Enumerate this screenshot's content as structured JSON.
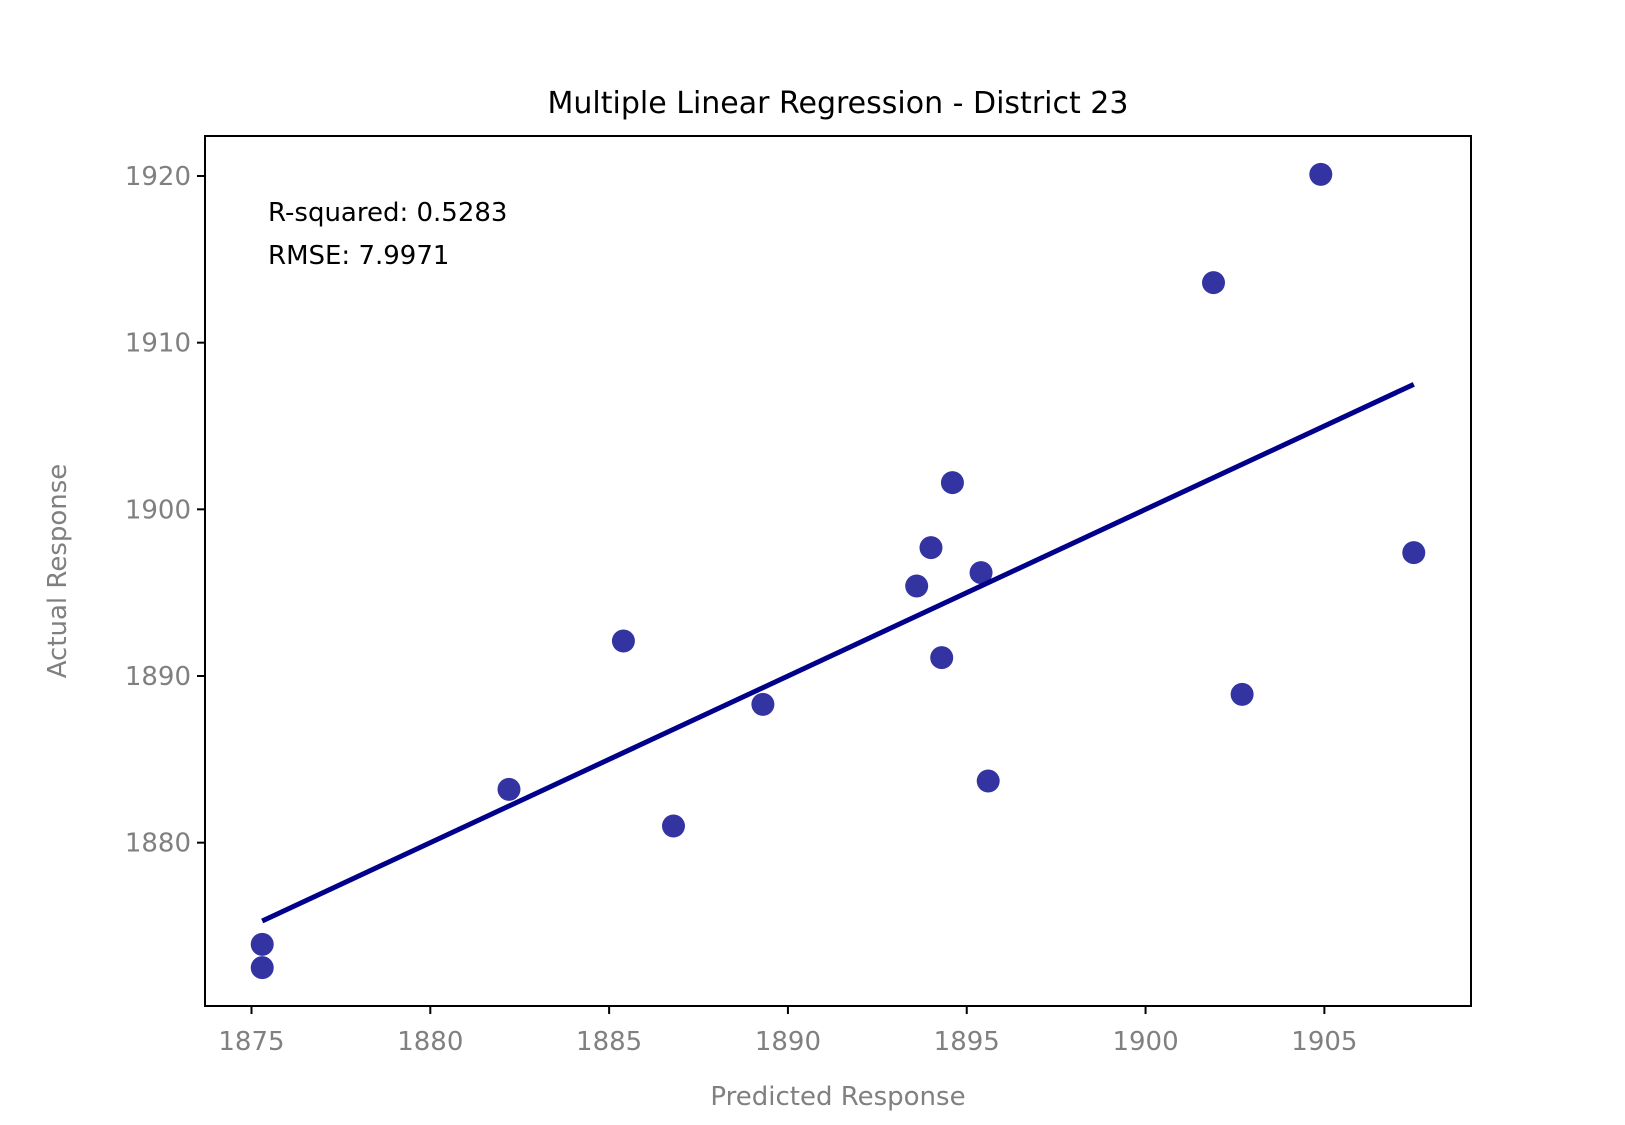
{
  "chart_data": {
    "type": "scatter",
    "title": "Multiple Linear Regression - District 23",
    "xlabel": "Predicted Response",
    "ylabel": "Actual Response",
    "xlim": [
      1873.7,
      1909.1
    ],
    "ylim": [
      1870.2,
      1922.4
    ],
    "xticks": [
      1875,
      1880,
      1885,
      1890,
      1895,
      1900,
      1905
    ],
    "yticks": [
      1880,
      1890,
      1900,
      1910,
      1920
    ],
    "grid": false,
    "annotations": [
      "R-squared: 0.5283",
      "RMSE: 7.9971"
    ],
    "points": [
      {
        "x": 1875.3,
        "y": 1873.9
      },
      {
        "x": 1875.3,
        "y": 1872.5
      },
      {
        "x": 1882.2,
        "y": 1883.2
      },
      {
        "x": 1885.4,
        "y": 1892.1
      },
      {
        "x": 1886.8,
        "y": 1881.0
      },
      {
        "x": 1889.3,
        "y": 1888.3
      },
      {
        "x": 1893.6,
        "y": 1895.4
      },
      {
        "x": 1894.0,
        "y": 1897.7
      },
      {
        "x": 1894.3,
        "y": 1891.1
      },
      {
        "x": 1894.6,
        "y": 1901.6
      },
      {
        "x": 1895.4,
        "y": 1896.2
      },
      {
        "x": 1895.6,
        "y": 1883.7
      },
      {
        "x": 1901.9,
        "y": 1913.6
      },
      {
        "x": 1902.7,
        "y": 1888.9
      },
      {
        "x": 1904.9,
        "y": 1920.1
      },
      {
        "x": 1907.5,
        "y": 1897.4
      }
    ],
    "fit_line": {
      "x": [
        1875.3,
        1907.5
      ],
      "y": [
        1875.3,
        1907.5
      ]
    },
    "colors": {
      "points": "#00008B",
      "fit_line": "#00008B"
    }
  }
}
